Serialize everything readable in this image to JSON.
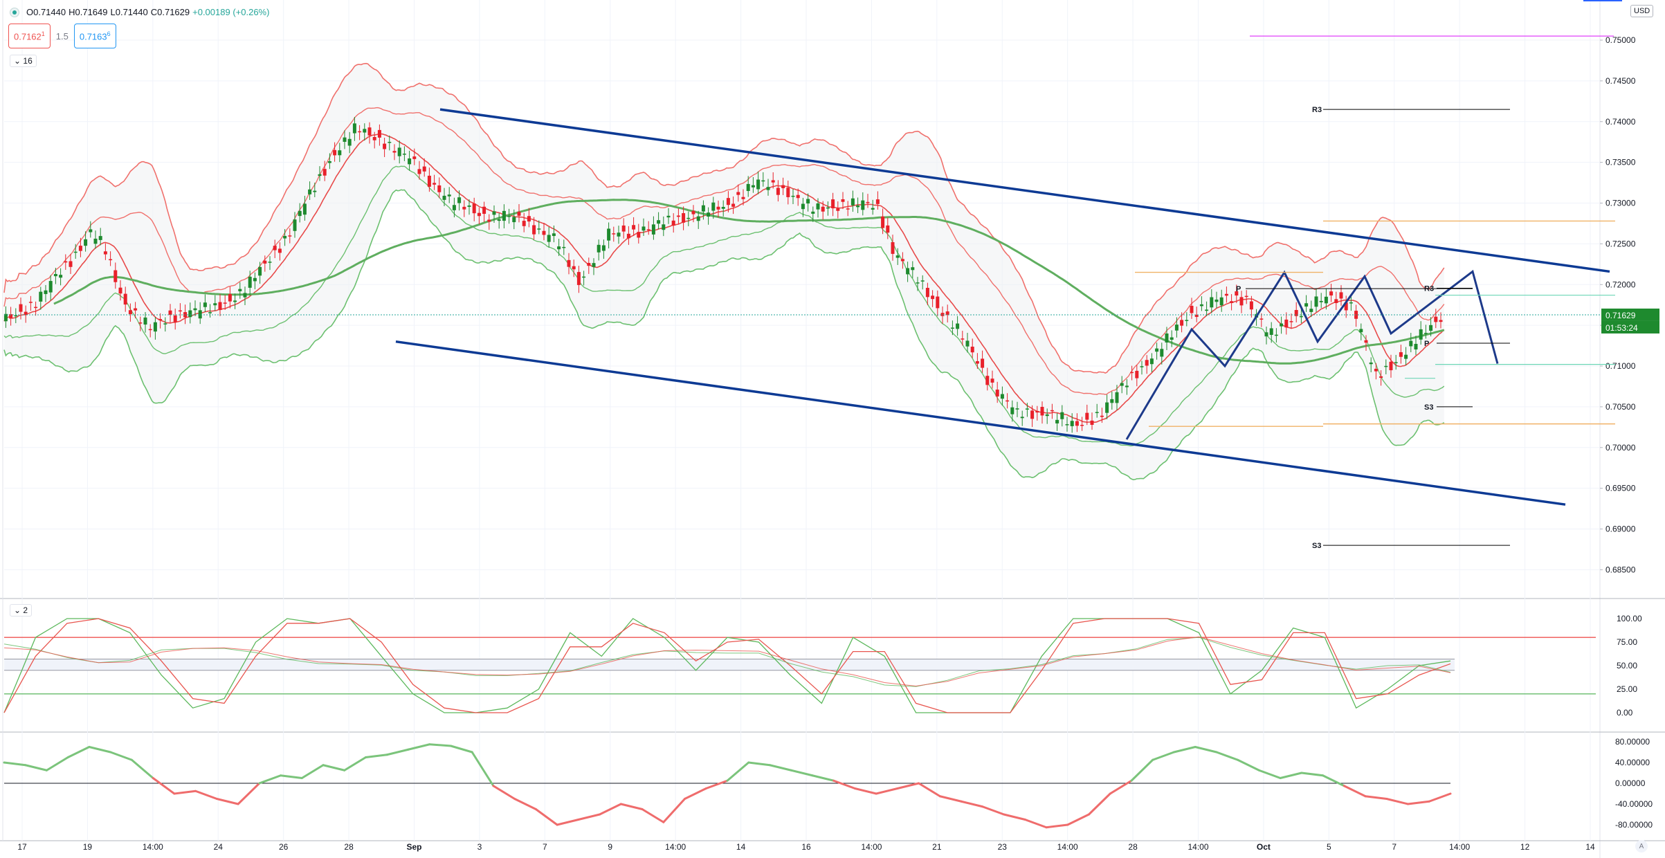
{
  "header": {
    "open": "O0.71440",
    "high": "H0.71649",
    "low": "L0.71440",
    "close": "C0.71629",
    "change": "+0.00189 (+0.26%)",
    "sell_price": "0.7162",
    "sell_sup": "1",
    "spread": "1.5",
    "buy_price": "0.7163",
    "buy_sup": "6",
    "collapse_main": "16",
    "collapse_osc": "2",
    "currency": "USD",
    "auto_label": "A"
  },
  "price_labels": {
    "last": "0.71629",
    "countdown": "01:53:24"
  },
  "colors": {
    "up": "#1e8a2e",
    "down": "#e8202a",
    "channel": "#0d3a94",
    "bb_upper": "#f0706c",
    "bb_lower": "#6cc070",
    "ma_long": "#5fae5f",
    "zigzag": "#1d3a8a"
  },
  "chart_data": [
    {
      "type": "candlestick",
      "title": "",
      "x_ticks": [
        "17",
        "19",
        "14:00",
        "24",
        "26",
        "28",
        "Sep",
        "3",
        "7",
        "9",
        "14:00",
        "14",
        "16",
        "14:00",
        "21",
        "23",
        "14:00",
        "28",
        "14:00",
        "Oct",
        "5",
        "7",
        "14:00",
        "12",
        "14"
      ],
      "y_ticks": [
        "0.75000",
        "0.74500",
        "0.74000",
        "0.73500",
        "0.73000",
        "0.72500",
        "0.72000",
        "0.71500",
        "0.71000",
        "0.70500",
        "0.70000",
        "0.69500",
        "0.69000",
        "0.68500"
      ],
      "ylim": [
        0.6825,
        0.7535
      ],
      "close_anchors": [
        [
          0,
          0.7155
        ],
        [
          20,
          0.718
        ],
        [
          38,
          0.7225
        ],
        [
          52,
          0.7265
        ],
        [
          60,
          0.7245
        ],
        [
          72,
          0.718
        ],
        [
          88,
          0.7145
        ],
        [
          104,
          0.7165
        ],
        [
          126,
          0.717
        ],
        [
          146,
          0.7195
        ],
        [
          172,
          0.7265
        ],
        [
          198,
          0.736
        ],
        [
          212,
          0.739
        ],
        [
          226,
          0.738
        ],
        [
          246,
          0.735
        ],
        [
          270,
          0.73
        ],
        [
          292,
          0.7285
        ],
        [
          312,
          0.728
        ],
        [
          332,
          0.7255
        ],
        [
          346,
          0.7205
        ],
        [
          364,
          0.726
        ],
        [
          390,
          0.727
        ],
        [
          412,
          0.7285
        ],
        [
          434,
          0.7295
        ],
        [
          452,
          0.7325
        ],
        [
          472,
          0.7315
        ],
        [
          488,
          0.729
        ],
        [
          506,
          0.73
        ],
        [
          526,
          0.7295
        ],
        [
          536,
          0.724
        ],
        [
          556,
          0.719
        ],
        [
          572,
          0.715
        ],
        [
          594,
          0.708
        ],
        [
          610,
          0.704
        ],
        [
          628,
          0.7045
        ],
        [
          644,
          0.7025
        ],
        [
          662,
          0.7045
        ],
        [
          680,
          0.709
        ],
        [
          698,
          0.7125
        ],
        [
          714,
          0.7165
        ],
        [
          730,
          0.718
        ],
        [
          748,
          0.7185
        ],
        [
          762,
          0.7135
        ],
        [
          782,
          0.717
        ],
        [
          800,
          0.7185
        ],
        [
          812,
          0.7175
        ],
        [
          826,
          0.7085
        ],
        [
          842,
          0.7115
        ],
        [
          858,
          0.7145
        ],
        [
          866,
          0.7163
        ]
      ],
      "channel_upper": [
        [
          0.7415,
          0.7216
        ],
        [
          null,
          null
        ]
      ],
      "channel_lower": [
        [
          0.713,
          0.693
        ]
      ],
      "levels": [
        {
          "label": "R3",
          "value": 0.7415
        },
        {
          "label": "P",
          "value": 0.7195
        },
        {
          "label": "R3",
          "value": 0.7193
        },
        {
          "label": "P",
          "value": 0.7128
        },
        {
          "label": "S3",
          "value": 0.705
        },
        {
          "label": "S3",
          "value": 0.688
        }
      ],
      "zigzag": [
        0.701,
        0.7145,
        0.71,
        0.7215,
        0.713,
        0.721,
        0.714,
        0.7216,
        0.7103
      ]
    },
    {
      "type": "line",
      "title": "",
      "y_ticks": [
        "100.00",
        "75.00",
        "50.00",
        "25.00",
        "0.00"
      ],
      "ylim": [
        -8,
        108
      ],
      "series": [
        {
          "values": [
            0,
            80,
            100,
            100,
            85,
            40,
            5,
            15,
            75,
            100,
            95,
            100,
            60,
            20,
            0,
            0,
            5,
            25,
            85,
            60,
            100,
            80,
            45,
            80,
            75,
            40,
            10,
            80,
            60,
            0,
            0,
            0,
            0,
            60,
            100,
            100,
            100,
            100,
            85,
            20,
            45,
            90,
            80,
            5,
            25,
            50,
            55
          ]
        },
        {
          "values": [
            0,
            60,
            95,
            100,
            90,
            55,
            15,
            10,
            60,
            95,
            95,
            100,
            75,
            30,
            5,
            0,
            0,
            15,
            70,
            70,
            95,
            85,
            55,
            75,
            78,
            50,
            20,
            65,
            65,
            10,
            0,
            0,
            0,
            45,
            95,
            100,
            100,
            100,
            95,
            30,
            35,
            85,
            85,
            15,
            20,
            40,
            52
          ]
        }
      ],
      "levels": [
        80,
        50,
        20
      ]
    },
    {
      "type": "area",
      "title": "",
      "y_ticks": [
        "80.00000",
        "40.00000",
        "0.00000",
        "-40.00000",
        "-80.00000"
      ],
      "ylim": [
        -90,
        95
      ],
      "values": [
        40,
        35,
        25,
        50,
        70,
        60,
        45,
        10,
        -20,
        -15,
        -30,
        -40,
        0,
        15,
        10,
        35,
        25,
        50,
        55,
        65,
        75,
        72,
        60,
        -5,
        -30,
        -50,
        -80,
        -70,
        -60,
        -40,
        -50,
        -75,
        -30,
        -10,
        5,
        40,
        35,
        25,
        15,
        5,
        -10,
        -20,
        -10,
        0,
        -25,
        -35,
        -45,
        -60,
        -70,
        -85,
        -80,
        -60,
        -20,
        5,
        45,
        60,
        70,
        60,
        45,
        25,
        10,
        20,
        15,
        -5,
        -25,
        -30,
        -40,
        -35,
        -20
      ]
    }
  ]
}
